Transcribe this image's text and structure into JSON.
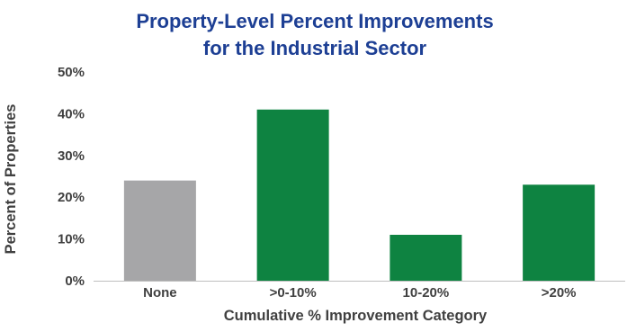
{
  "chart_data": {
    "type": "bar",
    "title_lines": [
      "Property-Level Percent Improvements",
      "for the Industrial Sector"
    ],
    "xlabel": "Cumulative % Improvement Category",
    "ylabel": "Percent of Properties",
    "categories": [
      "None",
      ">0-10%",
      "10-20%",
      ">20%"
    ],
    "values": [
      24,
      41,
      11,
      23
    ],
    "ylim": [
      0,
      50
    ],
    "yticks": [
      0,
      10,
      20,
      30,
      40,
      50
    ],
    "ytick_labels": [
      "0%",
      "10%",
      "20%",
      "30%",
      "40%",
      "50%"
    ],
    "bar_colors": [
      "#a6a6a8",
      "#0e8341",
      "#0e8341",
      "#0e8341"
    ],
    "title_color": "#1d3f94",
    "axis_color": "#404040",
    "grid": false,
    "legend": "none"
  }
}
